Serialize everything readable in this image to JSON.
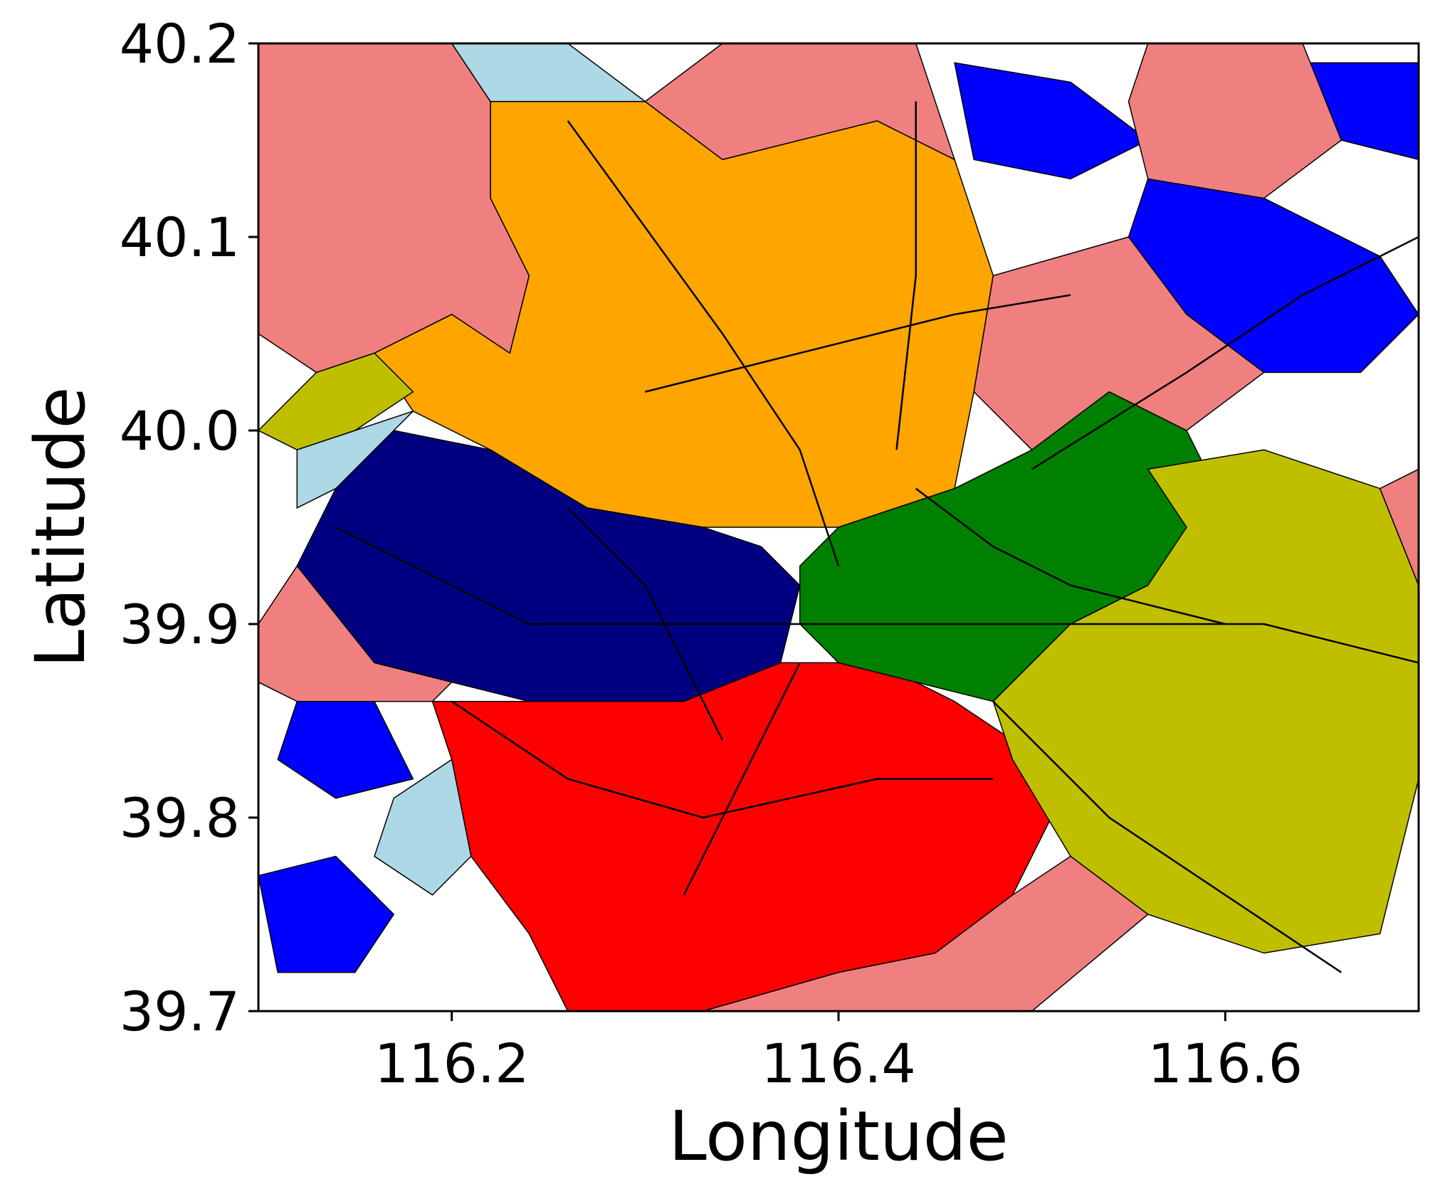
{
  "chart_data": {
    "type": "choropleth-map",
    "title": "",
    "xlabel": "Longitude",
    "ylabel": "Latitude",
    "xlim": [
      116.1,
      116.7
    ],
    "ylim": [
      39.7,
      40.2
    ],
    "xticks": [
      116.2,
      116.4,
      116.6
    ],
    "yticks": [
      39.7,
      39.8,
      39.9,
      40.0,
      40.1,
      40.2
    ],
    "xtick_labels": [
      "116.2",
      "116.4",
      "116.6"
    ],
    "ytick_labels": [
      "39.7",
      "39.8",
      "39.9",
      "40.0",
      "40.1",
      "40.2"
    ],
    "grid": false,
    "legend": "none",
    "background_color": "#ffffff",
    "boundary_color": "#000000",
    "cluster_colors": {
      "orange": "#ffa500",
      "navy": "#000080",
      "red": "#ff0000",
      "green": "#008000",
      "olive": "#bfbf00",
      "blue": "#0000ff",
      "lightcoral": "#f08080",
      "lightblue": "#add8e6"
    },
    "regions": [
      {
        "color": "orange",
        "polygon": [
          [
            116.22,
            40.17
          ],
          [
            116.3,
            40.17
          ],
          [
            116.34,
            40.14
          ],
          [
            116.42,
            40.16
          ],
          [
            116.46,
            40.14
          ],
          [
            116.48,
            40.08
          ],
          [
            116.47,
            40.02
          ],
          [
            116.46,
            39.97
          ],
          [
            116.4,
            39.95
          ],
          [
            116.33,
            39.95
          ],
          [
            116.27,
            39.96
          ],
          [
            116.22,
            39.99
          ],
          [
            116.18,
            40.01
          ],
          [
            116.16,
            40.04
          ],
          [
            116.2,
            40.06
          ],
          [
            116.23,
            40.04
          ],
          [
            116.24,
            40.08
          ],
          [
            116.22,
            40.12
          ]
        ]
      },
      {
        "color": "navy",
        "polygon": [
          [
            116.17,
            40.0
          ],
          [
            116.22,
            39.99
          ],
          [
            116.27,
            39.96
          ],
          [
            116.33,
            39.95
          ],
          [
            116.36,
            39.94
          ],
          [
            116.38,
            39.92
          ],
          [
            116.37,
            39.88
          ],
          [
            116.32,
            39.86
          ],
          [
            116.24,
            39.86
          ],
          [
            116.2,
            39.87
          ],
          [
            116.16,
            39.88
          ],
          [
            116.12,
            39.93
          ],
          [
            116.14,
            39.97
          ]
        ]
      },
      {
        "color": "red",
        "polygon": [
          [
            116.19,
            39.86
          ],
          [
            116.24,
            39.86
          ],
          [
            116.32,
            39.86
          ],
          [
            116.37,
            39.88
          ],
          [
            116.42,
            39.88
          ],
          [
            116.46,
            39.86
          ],
          [
            116.49,
            39.84
          ],
          [
            116.51,
            39.8
          ],
          [
            116.49,
            39.76
          ],
          [
            116.45,
            39.73
          ],
          [
            116.4,
            39.72
          ],
          [
            116.33,
            39.7
          ],
          [
            116.26,
            39.7
          ],
          [
            116.24,
            39.74
          ],
          [
            116.21,
            39.78
          ],
          [
            116.2,
            39.83
          ]
        ]
      },
      {
        "color": "green",
        "polygon": [
          [
            116.38,
            39.93
          ],
          [
            116.4,
            39.95
          ],
          [
            116.46,
            39.97
          ],
          [
            116.5,
            39.99
          ],
          [
            116.54,
            40.02
          ],
          [
            116.58,
            40.0
          ],
          [
            116.6,
            39.96
          ],
          [
            116.56,
            39.92
          ],
          [
            116.52,
            39.9
          ],
          [
            116.48,
            39.86
          ],
          [
            116.44,
            39.87
          ],
          [
            116.4,
            39.88
          ],
          [
            116.38,
            39.9
          ]
        ]
      },
      {
        "color": "olive",
        "polygon": [
          [
            116.56,
            39.98
          ],
          [
            116.62,
            39.99
          ],
          [
            116.68,
            39.97
          ],
          [
            116.7,
            39.92
          ],
          [
            116.7,
            39.82
          ],
          [
            116.68,
            39.74
          ],
          [
            116.62,
            39.73
          ],
          [
            116.56,
            39.75
          ],
          [
            116.52,
            39.78
          ],
          [
            116.49,
            39.83
          ],
          [
            116.48,
            39.86
          ],
          [
            116.52,
            39.9
          ],
          [
            116.56,
            39.92
          ],
          [
            116.58,
            39.95
          ]
        ]
      },
      {
        "color": "olive",
        "polygon": [
          [
            116.1,
            40.0
          ],
          [
            116.13,
            40.03
          ],
          [
            116.16,
            40.04
          ],
          [
            116.18,
            40.02
          ],
          [
            116.15,
            40.0
          ],
          [
            116.12,
            39.99
          ]
        ]
      },
      {
        "color": "blue",
        "polygon": [
          [
            116.56,
            40.13
          ],
          [
            116.62,
            40.12
          ],
          [
            116.68,
            40.09
          ],
          [
            116.7,
            40.06
          ],
          [
            116.67,
            40.03
          ],
          [
            116.62,
            40.03
          ],
          [
            116.58,
            40.06
          ],
          [
            116.55,
            40.1
          ]
        ]
      },
      {
        "color": "blue",
        "polygon": [
          [
            116.1,
            39.77
          ],
          [
            116.14,
            39.78
          ],
          [
            116.17,
            39.75
          ],
          [
            116.15,
            39.72
          ],
          [
            116.11,
            39.72
          ]
        ]
      },
      {
        "color": "blue",
        "polygon": [
          [
            116.46,
            40.19
          ],
          [
            116.52,
            40.18
          ],
          [
            116.56,
            40.15
          ],
          [
            116.52,
            40.13
          ],
          [
            116.47,
            40.14
          ]
        ]
      },
      {
        "color": "blue",
        "polygon": [
          [
            116.64,
            40.19
          ],
          [
            116.7,
            40.19
          ],
          [
            116.7,
            40.14
          ],
          [
            116.66,
            40.15
          ]
        ]
      },
      {
        "color": "blue",
        "polygon": [
          [
            116.12,
            39.86
          ],
          [
            116.16,
            39.86
          ],
          [
            116.18,
            39.82
          ],
          [
            116.14,
            39.81
          ],
          [
            116.11,
            39.83
          ]
        ]
      },
      {
        "color": "lightcoral",
        "polygon": [
          [
            116.1,
            40.2
          ],
          [
            116.2,
            40.2
          ],
          [
            116.22,
            40.17
          ],
          [
            116.22,
            40.12
          ],
          [
            116.24,
            40.08
          ],
          [
            116.23,
            40.04
          ],
          [
            116.2,
            40.06
          ],
          [
            116.16,
            40.04
          ],
          [
            116.13,
            40.03
          ],
          [
            116.1,
            40.05
          ]
        ]
      },
      {
        "color": "lightcoral",
        "polygon": [
          [
            116.34,
            40.2
          ],
          [
            116.44,
            40.2
          ],
          [
            116.46,
            40.14
          ],
          [
            116.42,
            40.16
          ],
          [
            116.34,
            40.14
          ],
          [
            116.3,
            40.17
          ]
        ]
      },
      {
        "color": "lightcoral",
        "polygon": [
          [
            116.56,
            40.2
          ],
          [
            116.64,
            40.2
          ],
          [
            116.66,
            40.15
          ],
          [
            116.62,
            40.12
          ],
          [
            116.56,
            40.13
          ],
          [
            116.55,
            40.17
          ]
        ]
      },
      {
        "color": "lightcoral",
        "polygon": [
          [
            116.48,
            40.08
          ],
          [
            116.55,
            40.1
          ],
          [
            116.58,
            40.06
          ],
          [
            116.62,
            40.03
          ],
          [
            116.58,
            40.0
          ],
          [
            116.54,
            40.02
          ],
          [
            116.5,
            39.99
          ],
          [
            116.47,
            40.02
          ]
        ]
      },
      {
        "color": "lightcoral",
        "polygon": [
          [
            116.1,
            39.9
          ],
          [
            116.12,
            39.93
          ],
          [
            116.16,
            39.88
          ],
          [
            116.2,
            39.87
          ],
          [
            116.19,
            39.86
          ],
          [
            116.16,
            39.86
          ],
          [
            116.12,
            39.86
          ],
          [
            116.1,
            39.87
          ]
        ]
      },
      {
        "color": "lightcoral",
        "polygon": [
          [
            116.26,
            39.7
          ],
          [
            116.33,
            39.7
          ],
          [
            116.4,
            39.72
          ],
          [
            116.45,
            39.73
          ],
          [
            116.49,
            39.76
          ],
          [
            116.52,
            39.78
          ],
          [
            116.56,
            39.75
          ],
          [
            116.5,
            39.7
          ]
        ]
      },
      {
        "color": "lightcoral",
        "polygon": [
          [
            116.68,
            39.97
          ],
          [
            116.7,
            39.98
          ],
          [
            116.7,
            39.92
          ]
        ]
      },
      {
        "color": "lightblue",
        "polygon": [
          [
            116.12,
            39.99
          ],
          [
            116.15,
            40.0
          ],
          [
            116.18,
            40.01
          ],
          [
            116.17,
            40.0
          ],
          [
            116.14,
            39.97
          ],
          [
            116.12,
            39.96
          ]
        ]
      },
      {
        "color": "lightblue",
        "polygon": [
          [
            116.17,
            39.81
          ],
          [
            116.2,
            39.83
          ],
          [
            116.21,
            39.78
          ],
          [
            116.19,
            39.76
          ],
          [
            116.16,
            39.78
          ]
        ]
      },
      {
        "color": "lightblue",
        "polygon": [
          [
            116.2,
            40.2
          ],
          [
            116.26,
            40.2
          ],
          [
            116.3,
            40.17
          ],
          [
            116.22,
            40.17
          ]
        ]
      }
    ],
    "roads": [
      [
        [
          116.26,
          40.16
        ],
        [
          116.34,
          40.05
        ],
        [
          116.38,
          39.99
        ],
        [
          116.4,
          39.93
        ]
      ],
      [
        [
          116.44,
          40.17
        ],
        [
          116.44,
          40.08
        ],
        [
          116.43,
          39.99
        ]
      ],
      [
        [
          116.14,
          39.95
        ],
        [
          116.24,
          39.9
        ],
        [
          116.32,
          39.9
        ],
        [
          116.42,
          39.9
        ],
        [
          116.52,
          39.9
        ],
        [
          116.62,
          39.9
        ],
        [
          116.7,
          39.88
        ]
      ],
      [
        [
          116.32,
          39.76
        ],
        [
          116.35,
          39.82
        ],
        [
          116.38,
          39.88
        ]
      ],
      [
        [
          116.5,
          39.98
        ],
        [
          116.58,
          40.03
        ],
        [
          116.64,
          40.07
        ],
        [
          116.7,
          40.1
        ]
      ],
      [
        [
          116.48,
          39.86
        ],
        [
          116.54,
          39.8
        ],
        [
          116.6,
          39.76
        ],
        [
          116.66,
          39.72
        ]
      ],
      [
        [
          116.2,
          39.86
        ],
        [
          116.26,
          39.82
        ],
        [
          116.33,
          39.8
        ],
        [
          116.42,
          39.82
        ],
        [
          116.48,
          39.82
        ]
      ],
      [
        [
          116.3,
          40.02
        ],
        [
          116.38,
          40.04
        ],
        [
          116.46,
          40.06
        ],
        [
          116.52,
          40.07
        ]
      ],
      [
        [
          116.26,
          39.96
        ],
        [
          116.3,
          39.92
        ],
        [
          116.32,
          39.88
        ],
        [
          116.34,
          39.84
        ]
      ],
      [
        [
          116.44,
          39.97
        ],
        [
          116.48,
          39.94
        ],
        [
          116.52,
          39.92
        ],
        [
          116.6,
          39.9
        ]
      ]
    ]
  }
}
